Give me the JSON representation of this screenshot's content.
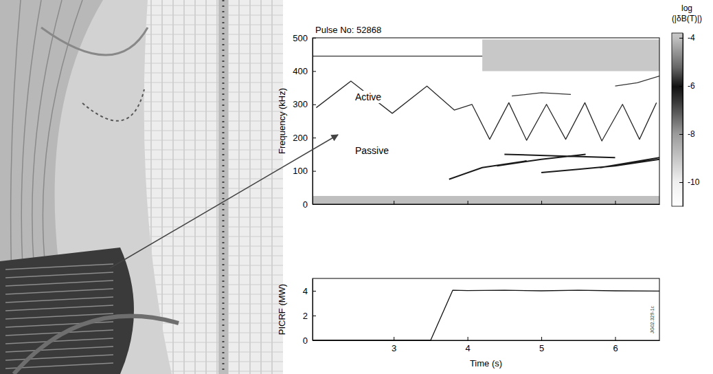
{
  "chart_data": [
    {
      "type": "line",
      "title": "Pulse No: 52868",
      "ylabel": "Frequency (kHz)",
      "xlim": [
        1.9,
        6.6
      ],
      "xticks": [
        3,
        4,
        5,
        6
      ],
      "ylim": [
        0,
        500
      ],
      "yticks": [
        0,
        100,
        200,
        300,
        400,
        500
      ],
      "tick_labels": "y",
      "series": [
        {
          "type": "area",
          "color": "#9a9a9a",
          "x": [
            4.2,
            6.6
          ],
          "values": [
            495,
            495
          ],
          "lower": [
            400,
            400
          ]
        },
        {
          "type": "area",
          "color": "#8a8a8a",
          "x": [
            1.9,
            6.6
          ],
          "values": [
            25,
            25
          ],
          "lower": [
            0,
            0
          ]
        },
        {
          "name": "Active",
          "color": "#2a2a2a",
          "x": [
            1.95,
            2.42,
            2.98,
            3.45,
            3.82,
            4.06,
            4.3,
            4.56,
            4.8,
            5.07,
            5.33,
            5.59,
            5.82,
            6.1,
            6.33,
            6.56
          ],
          "values": [
            290,
            370,
            273,
            355,
            283,
            300,
            195,
            305,
            192,
            300,
            195,
            305,
            190,
            300,
            195,
            305
          ]
        },
        {
          "name": "Passive",
          "color": "#1a1a1a",
          "x": [
            3.75,
            4.2,
            4.8,
            null,
            4.4,
            5.0,
            5.6,
            null,
            5.0,
            5.5,
            6.0,
            6.6,
            null,
            5.8,
            6.2,
            6.6,
            null,
            4.5,
            5.2,
            6.0
          ],
          "values": [
            75,
            110,
            130,
            null,
            115,
            135,
            150,
            null,
            95,
            105,
            115,
            135,
            null,
            110,
            125,
            140,
            null,
            150,
            145,
            140
          ]
        },
        {
          "color": "#333333",
          "x": [
            1.9,
            4.2
          ],
          "values": [
            445,
            445
          ]
        },
        {
          "color": "#333333",
          "x": [
            4.6,
            5.0,
            5.4
          ],
          "values": [
            325,
            335,
            330
          ]
        },
        {
          "color": "#333333",
          "x": [
            6.0,
            6.3,
            6.6
          ],
          "values": [
            355,
            365,
            385
          ]
        }
      ],
      "colorbar": {
        "label": "log (|δB(T)|)",
        "range": [
          -11,
          -3.8
        ],
        "ticks": [
          -4,
          -6,
          -8,
          -10
        ]
      }
    },
    {
      "type": "line",
      "ylabel": "PICRF (MW)",
      "xlabel": "Time (s)",
      "xlim": [
        1.9,
        6.6
      ],
      "xticks": [
        3,
        4,
        5,
        6
      ],
      "ylim": [
        0,
        5
      ],
      "yticks": [
        0,
        2,
        4
      ],
      "annotations": [
        "JG02.329-1c"
      ],
      "series": [
        {
          "color": "#111111",
          "x": [
            1.9,
            3.5,
            3.8,
            4.0,
            4.5,
            5.0,
            5.5,
            6.0,
            6.6
          ],
          "values": [
            0,
            0,
            4.05,
            4.02,
            4.05,
            4.0,
            4.05,
            4.0,
            3.98
          ]
        }
      ]
    }
  ]
}
